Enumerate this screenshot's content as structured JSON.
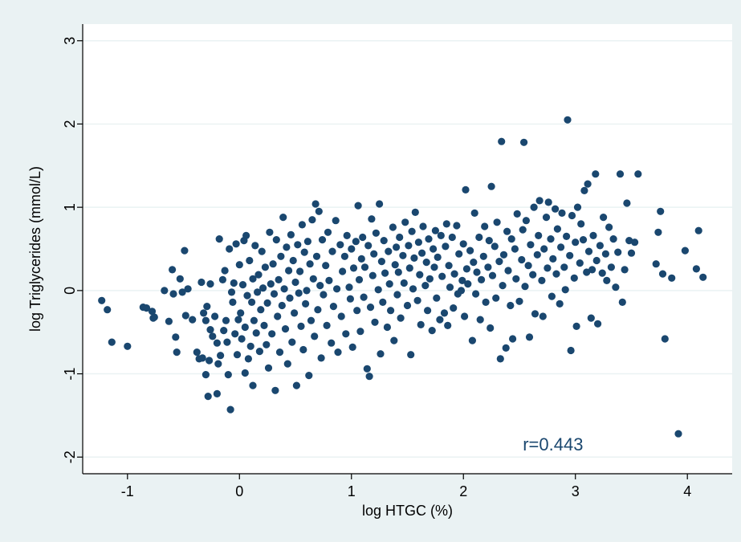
{
  "chart_data": {
    "type": "scatter",
    "xlabel": "log HTGC (%)",
    "ylabel": "log Triglycerides (mmol/L)",
    "xlim": [
      -1.4,
      4.4
    ],
    "ylim": [
      -2.2,
      3.2
    ],
    "xticks": [
      -1,
      0,
      1,
      2,
      3,
      4
    ],
    "yticks": [
      -2,
      -1,
      0,
      1,
      2,
      3
    ],
    "grid": true,
    "colors": {
      "outer_background": "#eaf2f3",
      "plot_background": "#ffffff",
      "grid": "#eaf2f3",
      "point": "#1a476f",
      "annotation": "#1a476f"
    },
    "annotation": {
      "text": "r=0.443",
      "x": 2.8,
      "y": -1.85
    },
    "points": [
      [
        -1.23,
        -0.12
      ],
      [
        -1.18,
        -0.23
      ],
      [
        -1.14,
        -0.62
      ],
      [
        -1.0,
        -0.67
      ],
      [
        -0.86,
        -0.2
      ],
      [
        -0.83,
        -0.21
      ],
      [
        -0.78,
        -0.25
      ],
      [
        -0.77,
        -0.33
      ],
      [
        -0.76,
        -0.32
      ],
      [
        -0.67,
        0.0
      ],
      [
        -0.63,
        -0.37
      ],
      [
        -0.6,
        0.25
      ],
      [
        -0.59,
        -0.04
      ],
      [
        -0.57,
        -0.56
      ],
      [
        -0.56,
        -0.74
      ],
      [
        -0.53,
        0.14
      ],
      [
        -0.51,
        -0.02
      ],
      [
        -0.49,
        0.48
      ],
      [
        -0.48,
        -0.3
      ],
      [
        -0.46,
        0.02
      ],
      [
        -0.42,
        -0.35
      ],
      [
        -0.38,
        -0.74
      ],
      [
        -0.36,
        -0.82
      ],
      [
        -0.34,
        0.1
      ],
      [
        -0.33,
        -0.81
      ],
      [
        -0.32,
        -0.27
      ],
      [
        -0.3,
        -0.36
      ],
      [
        -0.3,
        -1.01
      ],
      [
        -0.29,
        -0.19
      ],
      [
        -0.28,
        -1.27
      ],
      [
        -0.27,
        -0.84
      ],
      [
        -0.26,
        -0.47
      ],
      [
        -0.26,
        0.08
      ],
      [
        -0.24,
        -0.55
      ],
      [
        -0.22,
        -0.31
      ],
      [
        -0.2,
        -0.63
      ],
      [
        -0.2,
        -1.24
      ],
      [
        -0.19,
        -0.88
      ],
      [
        -0.18,
        0.62
      ],
      [
        -0.17,
        -0.78
      ],
      [
        -0.15,
        0.13
      ],
      [
        -0.14,
        -0.48
      ],
      [
        -0.13,
        0.24
      ],
      [
        -0.12,
        -0.36
      ],
      [
        -0.11,
        -0.62
      ],
      [
        -0.1,
        -1.01
      ],
      [
        -0.09,
        0.5
      ],
      [
        -0.08,
        -1.43
      ],
      [
        -0.07,
        -0.02
      ],
      [
        -0.06,
        -0.14
      ],
      [
        -0.05,
        0.09
      ],
      [
        -0.04,
        -0.52
      ],
      [
        -0.03,
        0.56
      ],
      [
        -0.02,
        -0.77
      ],
      [
        -0.01,
        -0.35
      ],
      [
        0.0,
        0.31
      ],
      [
        0.01,
        -0.27
      ],
      [
        0.02,
        -0.58
      ],
      [
        0.03,
        0.07
      ],
      [
        0.04,
        0.6
      ],
      [
        0.05,
        -0.99
      ],
      [
        0.05,
        -0.44
      ],
      [
        0.06,
        0.66
      ],
      [
        0.07,
        -0.06
      ],
      [
        0.08,
        -0.82
      ],
      [
        0.09,
        0.36
      ],
      [
        0.1,
        -0.67
      ],
      [
        0.11,
        -0.14
      ],
      [
        0.12,
        0.14
      ],
      [
        0.12,
        -1.14
      ],
      [
        0.13,
        -0.36
      ],
      [
        0.14,
        0.54
      ],
      [
        0.15,
        -0.51
      ],
      [
        0.16,
        -0.02
      ],
      [
        0.17,
        0.19
      ],
      [
        0.18,
        -0.73
      ],
      [
        0.19,
        -0.23
      ],
      [
        0.2,
        0.47
      ],
      [
        0.21,
        0.03
      ],
      [
        0.22,
        -0.42
      ],
      [
        0.23,
        0.28
      ],
      [
        0.24,
        -0.65
      ],
      [
        0.25,
        -0.15
      ],
      [
        0.26,
        -0.93
      ],
      [
        0.27,
        0.7
      ],
      [
        0.28,
        0.08
      ],
      [
        0.29,
        -0.52
      ],
      [
        0.3,
        0.32
      ],
      [
        0.31,
        -0.04
      ],
      [
        0.32,
        -1.2
      ],
      [
        0.33,
        0.61
      ],
      [
        0.34,
        -0.31
      ],
      [
        0.35,
        0.13
      ],
      [
        0.36,
        -0.74
      ],
      [
        0.37,
        0.41
      ],
      [
        0.38,
        -0.18
      ],
      [
        0.39,
        0.88
      ],
      [
        0.4,
        0.02
      ],
      [
        0.41,
        -0.46
      ],
      [
        0.42,
        0.52
      ],
      [
        0.43,
        -0.88
      ],
      [
        0.44,
        0.24
      ],
      [
        0.45,
        -0.09
      ],
      [
        0.46,
        0.67
      ],
      [
        0.47,
        -0.62
      ],
      [
        0.48,
        0.36
      ],
      [
        0.49,
        -0.27
      ],
      [
        0.5,
        0.1
      ],
      [
        0.51,
        -1.14
      ],
      [
        0.52,
        0.55
      ],
      [
        0.53,
        -0.03
      ],
      [
        0.54,
        0.23
      ],
      [
        0.55,
        -0.43
      ],
      [
        0.56,
        0.79
      ],
      [
        0.57,
        -0.71
      ],
      [
        0.58,
        0.46
      ],
      [
        0.59,
        -0.16
      ],
      [
        0.6,
        0.0
      ],
      [
        0.61,
        0.59
      ],
      [
        0.62,
        -1.02
      ],
      [
        0.63,
        0.32
      ],
      [
        0.64,
        -0.36
      ],
      [
        0.65,
        0.85
      ],
      [
        0.66,
        0.14
      ],
      [
        0.67,
        -0.55
      ],
      [
        0.68,
        1.04
      ],
      [
        0.69,
        0.41
      ],
      [
        0.7,
        -0.23
      ],
      [
        0.71,
        0.95
      ],
      [
        0.72,
        0.06
      ],
      [
        0.73,
        -0.81
      ],
      [
        0.74,
        0.61
      ],
      [
        0.75,
        -0.05
      ],
      [
        0.77,
        0.3
      ],
      [
        0.78,
        -0.42
      ],
      [
        0.79,
        0.7
      ],
      [
        0.8,
        0.12
      ],
      [
        0.82,
        -0.63
      ],
      [
        0.83,
        0.47
      ],
      [
        0.84,
        -0.19
      ],
      [
        0.86,
        0.84
      ],
      [
        0.87,
        0.02
      ],
      [
        0.88,
        -0.74
      ],
      [
        0.9,
        0.55
      ],
      [
        0.91,
        -0.31
      ],
      [
        0.92,
        0.23
      ],
      [
        0.94,
        0.41
      ],
      [
        0.95,
        -0.52
      ],
      [
        0.96,
        0.66
      ],
      [
        0.98,
        0.04
      ],
      [
        0.99,
        -0.1
      ],
      [
        1.0,
        0.5
      ],
      [
        1.01,
        -0.68
      ],
      [
        1.02,
        0.27
      ],
      [
        1.04,
        0.59
      ],
      [
        1.05,
        -0.24
      ],
      [
        1.06,
        1.02
      ],
      [
        1.07,
        0.13
      ],
      [
        1.08,
        -0.49
      ],
      [
        1.09,
        0.38
      ],
      [
        1.1,
        0.64
      ],
      [
        1.11,
        -0.08
      ],
      [
        1.12,
        0.28
      ],
      [
        1.14,
        -0.94
      ],
      [
        1.15,
        0.54
      ],
      [
        1.16,
        -1.03
      ],
      [
        1.17,
        -0.2
      ],
      [
        1.18,
        0.86
      ],
      [
        1.19,
        0.18
      ],
      [
        1.2,
        0.44
      ],
      [
        1.21,
        -0.38
      ],
      [
        1.22,
        0.69
      ],
      [
        1.24,
        0.01
      ],
      [
        1.25,
        1.04
      ],
      [
        1.26,
        -0.76
      ],
      [
        1.27,
        0.35
      ],
      [
        1.28,
        -0.14
      ],
      [
        1.29,
        0.6
      ],
      [
        1.3,
        0.21
      ],
      [
        1.32,
        -0.44
      ],
      [
        1.33,
        0.47
      ],
      [
        1.34,
        0.08
      ],
      [
        1.35,
        -0.24
      ],
      [
        1.37,
        0.76
      ],
      [
        1.38,
        -0.6
      ],
      [
        1.39,
        0.31
      ],
      [
        1.4,
        0.52
      ],
      [
        1.41,
        -0.05
      ],
      [
        1.42,
        0.22
      ],
      [
        1.43,
        0.64
      ],
      [
        1.44,
        -0.33
      ],
      [
        1.46,
        0.42
      ],
      [
        1.47,
        0.09
      ],
      [
        1.48,
        0.82
      ],
      [
        1.5,
        -0.18
      ],
      [
        1.51,
        0.54
      ],
      [
        1.52,
        0.27
      ],
      [
        1.53,
        -0.77
      ],
      [
        1.54,
        0.71
      ],
      [
        1.55,
        0.02
      ],
      [
        1.56,
        0.39
      ],
      [
        1.57,
        0.94
      ],
      [
        1.59,
        -0.12
      ],
      [
        1.6,
        0.58
      ],
      [
        1.61,
        0.19
      ],
      [
        1.62,
        -0.41
      ],
      [
        1.63,
        0.45
      ],
      [
        1.64,
        0.77
      ],
      [
        1.66,
        0.06
      ],
      [
        1.67,
        0.34
      ],
      [
        1.68,
        -0.24
      ],
      [
        1.69,
        0.62
      ],
      [
        1.7,
        0.14
      ],
      [
        1.72,
        -0.48
      ],
      [
        1.73,
        0.5
      ],
      [
        1.74,
        0.28
      ],
      [
        1.75,
        0.72
      ],
      [
        1.76,
        -0.09
      ],
      [
        1.77,
        0.4
      ],
      [
        1.79,
        -0.35
      ],
      [
        1.8,
        0.66
      ],
      [
        1.81,
        0.17
      ],
      [
        1.83,
        -0.27
      ],
      [
        1.84,
        0.53
      ],
      [
        1.85,
        0.8
      ],
      [
        1.86,
        -0.42
      ],
      [
        1.87,
        0.3
      ],
      [
        1.88,
        0.04
      ],
      [
        1.9,
        0.64
      ],
      [
        1.91,
        -0.21
      ],
      [
        1.92,
        0.2
      ],
      [
        1.94,
        0.78
      ],
      [
        1.95,
        -0.04
      ],
      [
        1.96,
        0.44
      ],
      [
        1.98,
        0.0
      ],
      [
        1.99,
        0.12
      ],
      [
        2.0,
        0.56
      ],
      [
        2.01,
        -0.31
      ],
      [
        2.02,
        1.21
      ],
      [
        2.03,
        0.26
      ],
      [
        2.04,
        0.08
      ],
      [
        2.06,
        0.48
      ],
      [
        2.08,
        -0.6
      ],
      [
        2.09,
        0.34
      ],
      [
        2.1,
        0.93
      ],
      [
        2.11,
        -0.04
      ],
      [
        2.12,
        0.22
      ],
      [
        2.14,
        0.64
      ],
      [
        2.15,
        -0.35
      ],
      [
        2.16,
        0.13
      ],
      [
        2.18,
        0.41
      ],
      [
        2.19,
        0.77
      ],
      [
        2.2,
        -0.14
      ],
      [
        2.22,
        0.28
      ],
      [
        2.23,
        0.6
      ],
      [
        2.24,
        -0.45
      ],
      [
        2.25,
        1.25
      ],
      [
        2.26,
        0.18
      ],
      [
        2.28,
        0.53
      ],
      [
        2.29,
        -0.09
      ],
      [
        2.3,
        0.82
      ],
      [
        2.32,
        0.35
      ],
      [
        2.33,
        -0.82
      ],
      [
        2.34,
        1.79
      ],
      [
        2.35,
        0.06
      ],
      [
        2.36,
        0.43
      ],
      [
        2.38,
        -0.69
      ],
      [
        2.39,
        0.71
      ],
      [
        2.4,
        0.24
      ],
      [
        2.42,
        -0.18
      ],
      [
        2.43,
        0.62
      ],
      [
        2.44,
        -0.58
      ],
      [
        2.46,
        0.5
      ],
      [
        2.47,
        0.14
      ],
      [
        2.48,
        0.92
      ],
      [
        2.5,
        -0.13
      ],
      [
        2.52,
        0.37
      ],
      [
        2.53,
        0.73
      ],
      [
        2.54,
        1.78
      ],
      [
        2.55,
        0.05
      ],
      [
        2.56,
        0.84
      ],
      [
        2.58,
        0.3
      ],
      [
        2.59,
        -0.56
      ],
      [
        2.6,
        0.55
      ],
      [
        2.62,
        0.19
      ],
      [
        2.63,
        1.0
      ],
      [
        2.64,
        -0.28
      ],
      [
        2.66,
        0.43
      ],
      [
        2.67,
        0.66
      ],
      [
        2.68,
        1.08
      ],
      [
        2.7,
        0.12
      ],
      [
        2.71,
        -0.31
      ],
      [
        2.72,
        0.5
      ],
      [
        2.74,
        0.88
      ],
      [
        2.75,
        0.27
      ],
      [
        2.76,
        1.06
      ],
      [
        2.78,
        0.62
      ],
      [
        2.79,
        -0.07
      ],
      [
        2.8,
        0.38
      ],
      [
        2.82,
        0.98
      ],
      [
        2.83,
        0.2
      ],
      [
        2.84,
        0.74
      ],
      [
        2.86,
        -0.16
      ],
      [
        2.87,
        0.52
      ],
      [
        2.88,
        0.93
      ],
      [
        2.9,
        0.28
      ],
      [
        2.91,
        0.01
      ],
      [
        2.92,
        0.65
      ],
      [
        2.93,
        2.05
      ],
      [
        2.95,
        0.42
      ],
      [
        2.96,
        -0.72
      ],
      [
        2.97,
        0.9
      ],
      [
        2.99,
        0.15
      ],
      [
        3.0,
        0.58
      ],
      [
        3.01,
        -0.43
      ],
      [
        3.02,
        1.0
      ],
      [
        3.04,
        0.33
      ],
      [
        3.05,
        0.8
      ],
      [
        3.07,
        0.61
      ],
      [
        3.08,
        1.2
      ],
      [
        3.1,
        0.22
      ],
      [
        3.11,
        1.28
      ],
      [
        3.12,
        0.47
      ],
      [
        3.14,
        -0.33
      ],
      [
        3.15,
        0.25
      ],
      [
        3.16,
        0.66
      ],
      [
        3.18,
        1.4
      ],
      [
        3.19,
        0.36
      ],
      [
        3.2,
        -0.4
      ],
      [
        3.22,
        0.54
      ],
      [
        3.24,
        0.21
      ],
      [
        3.25,
        0.88
      ],
      [
        3.27,
        0.44
      ],
      [
        3.28,
        0.12
      ],
      [
        3.3,
        0.76
      ],
      [
        3.32,
        0.28
      ],
      [
        3.34,
        0.62
      ],
      [
        3.36,
        0.04
      ],
      [
        3.38,
        0.46
      ],
      [
        3.4,
        1.4
      ],
      [
        3.42,
        -0.14
      ],
      [
        3.44,
        0.25
      ],
      [
        3.46,
        1.05
      ],
      [
        3.48,
        0.6
      ],
      [
        3.5,
        0.45
      ],
      [
        3.53,
        0.58
      ],
      [
        3.56,
        1.4
      ],
      [
        3.72,
        0.32
      ],
      [
        3.74,
        0.7
      ],
      [
        3.76,
        0.95
      ],
      [
        3.78,
        0.2
      ],
      [
        3.8,
        -0.58
      ],
      [
        3.86,
        0.15
      ],
      [
        3.92,
        -1.72
      ],
      [
        3.98,
        0.48
      ],
      [
        4.08,
        0.26
      ],
      [
        4.1,
        0.72
      ],
      [
        4.14,
        0.16
      ]
    ]
  }
}
